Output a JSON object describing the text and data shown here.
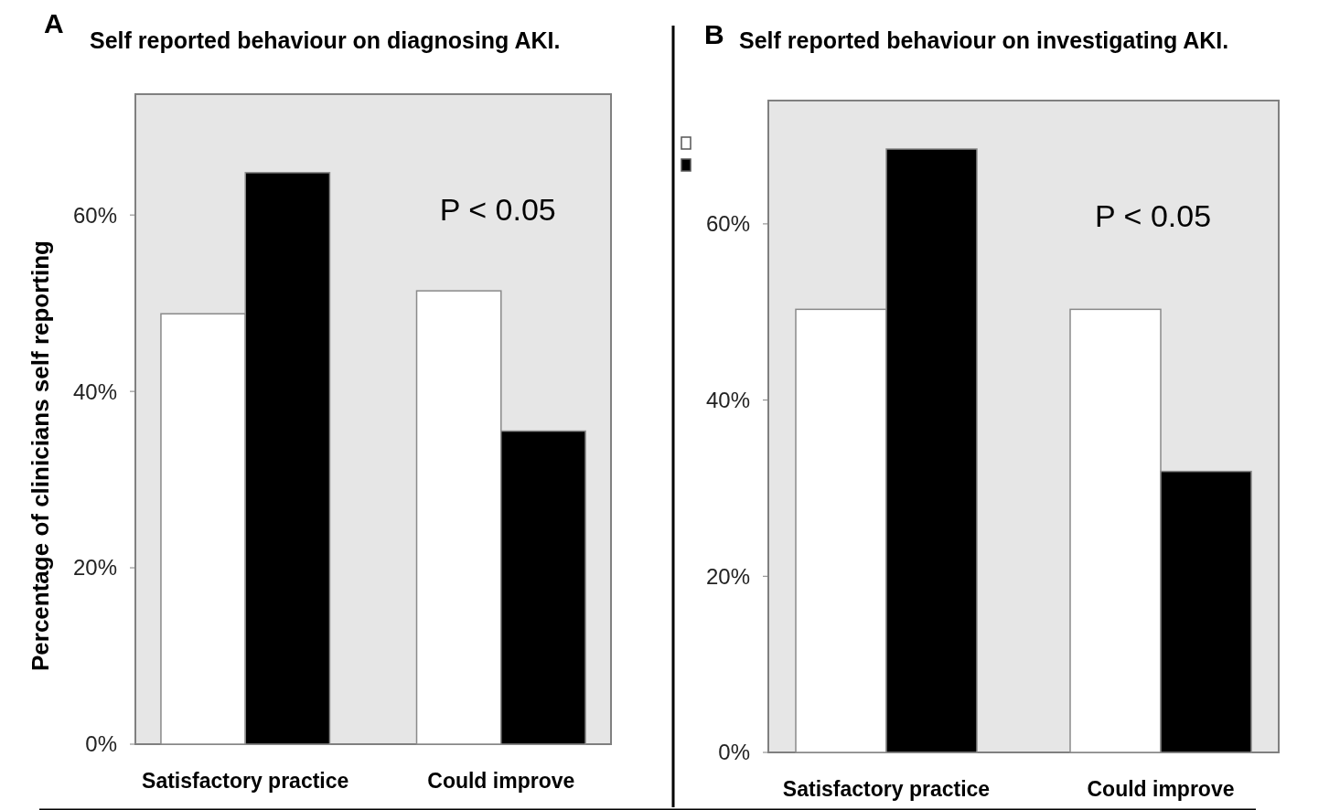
{
  "chart_data": [
    {
      "type": "bar",
      "title": "Self reported behaviour on diagnosing AKI.",
      "ylabel": "Percentage of clinicians self reporting",
      "annotations": [
        "A",
        "P < 0.05"
      ],
      "categories": [
        "Satisfactory practice",
        "Could improve"
      ],
      "series": [
        {
          "color": "#ffffff",
          "values": [
            48.8,
            51.4
          ]
        },
        {
          "color": "#000000",
          "values": [
            64.8,
            35.5
          ]
        }
      ],
      "ylim": [
        0,
        73.7
      ],
      "yticks": [
        {
          "value": 0,
          "label": "0%"
        },
        {
          "value": 20,
          "label": "20%"
        },
        {
          "value": 40,
          "label": "40%"
        },
        {
          "value": 60,
          "label": "60%"
        }
      ],
      "grid": false
    },
    {
      "type": "bar",
      "title": "Self reported behaviour on investigating AKI.",
      "annotations": [
        "B",
        "P < 0.05"
      ],
      "categories": [
        "Satisfactory practice",
        "Could improve"
      ],
      "series": [
        {
          "color": "#ffffff",
          "values": [
            50.3,
            50.3
          ]
        },
        {
          "color": "#000000",
          "values": [
            68.5,
            31.9
          ]
        }
      ],
      "ylim": [
        0,
        74
      ],
      "yticks": [
        {
          "value": 0,
          "label": "0%"
        },
        {
          "value": 20,
          "label": "20%"
        },
        {
          "value": 40,
          "label": "40%"
        },
        {
          "value": 60,
          "label": "60%"
        }
      ],
      "grid": false
    }
  ]
}
